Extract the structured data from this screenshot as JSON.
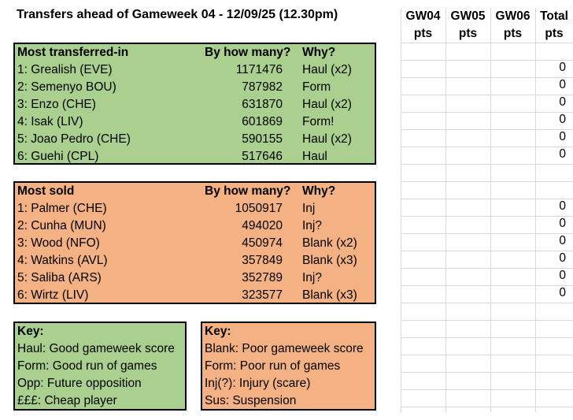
{
  "title": "Transfers ahead of Gameweek 04 - 12/09/25 (12.30pm)",
  "most_in": {
    "headers": [
      "Most transferred-in",
      "By how many?",
      "Why?"
    ],
    "rows": [
      {
        "name": "1: Grealish (EVE)",
        "count": "1171476",
        "why": "Haul (x2)"
      },
      {
        "name": "2: Semenyo BOU)",
        "count": "787982",
        "why": "Form"
      },
      {
        "name": "3: Enzo (CHE)",
        "count": "631870",
        "why": "Haul (x2)"
      },
      {
        "name": "4: Isak (LIV)",
        "count": "601869",
        "why": "Form!"
      },
      {
        "name": "5: Joao Pedro (CHE)",
        "count": "590155",
        "why": "Haul (x2)"
      },
      {
        "name": "6: Guehi (CPL)",
        "count": "517646",
        "why": "Haul"
      }
    ]
  },
  "most_sold": {
    "headers": [
      "Most sold",
      "By how many?",
      "Why?"
    ],
    "rows": [
      {
        "name": "1: Palmer (CHE)",
        "count": "1050917",
        "why": "Inj"
      },
      {
        "name": "2: Cunha (MUN)",
        "count": "494020",
        "why": "Inj?"
      },
      {
        "name": "3: Wood (NFO)",
        "count": "450974",
        "why": "Blank (x2)"
      },
      {
        "name": "4: Watkins (AVL)",
        "count": "357849",
        "why": "Blank (x3)"
      },
      {
        "name": "5: Saliba (ARS)",
        "count": "352789",
        "why": "Inj?"
      },
      {
        "name": "6: Wirtz (LIV)",
        "count": "323577",
        "why": "Blank (x3)"
      }
    ]
  },
  "key_green": {
    "title": "Key:",
    "items": [
      "Haul: Good gameweek score",
      "Form: Good run of games",
      "Opp: Future opposition",
      "£££: Cheap player"
    ]
  },
  "key_orange": {
    "title": "Key:",
    "items": [
      "Blank: Poor gameweek score",
      "Form: Poor run of games",
      "Inj(?): Injury (scare)",
      "Sus: Suspension"
    ]
  },
  "points_headers": [
    {
      "line1": "GW04",
      "line2": "pts"
    },
    {
      "line1": "GW05",
      "line2": "pts"
    },
    {
      "line1": "GW06",
      "line2": "pts"
    },
    {
      "line1": "Total",
      "line2": "pts"
    }
  ],
  "totals_in": [
    "0",
    "0",
    "0",
    "0",
    "0",
    "0"
  ],
  "totals_sold": [
    "0",
    "0",
    "0",
    "0",
    "0",
    "0"
  ],
  "colors": {
    "green": "#a9d08e",
    "orange": "#f4b183",
    "grid": "#d9d9d9"
  }
}
